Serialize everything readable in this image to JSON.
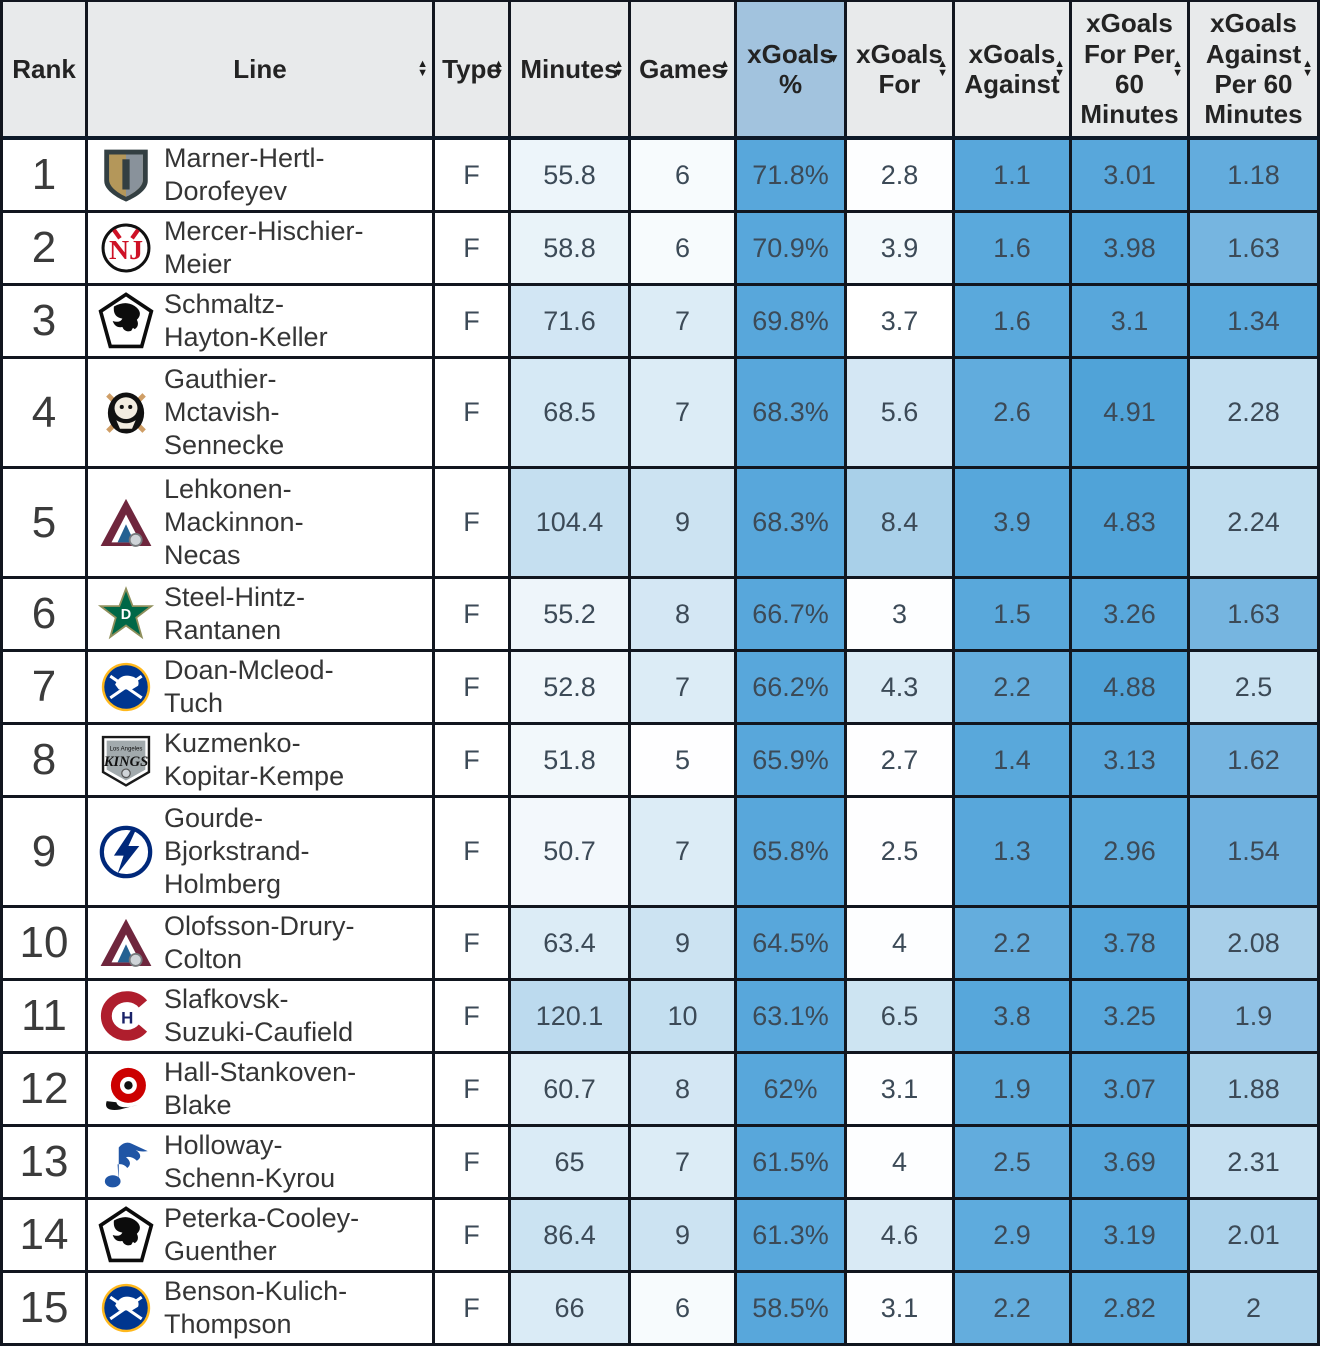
{
  "icons": {
    "sort_up": "▲",
    "sort_down": "▼",
    "sort_desc_active": "▼"
  },
  "palette": {
    "header_bg": "#e8eaeb",
    "header_active_bg": "#a2c3de",
    "border": "#11161f",
    "heat_strong_blue": "#58a7db",
    "heat_light_blue": "#d9eaf5",
    "cell_text": "#3c4a57"
  },
  "teams": {
    "VGK": {
      "name": "Vegas Golden Knights",
      "colors": [
        "#b4975a",
        "#333f42",
        "#89929b"
      ]
    },
    "NJD": {
      "name": "New Jersey Devils",
      "colors": [
        "#ce1126",
        "#000000",
        "#ffffff"
      ]
    },
    "UTA": {
      "name": "Utah Mammoth",
      "colors": [
        "#0c0c0c",
        "#6cace4",
        "#ffffff"
      ]
    },
    "ANA": {
      "name": "Anaheim Ducks",
      "colors": [
        "#111111",
        "#cf9e66",
        "#f2ece0"
      ]
    },
    "COL": {
      "name": "Colorado Avalanche",
      "colors": [
        "#6f263d",
        "#236192",
        "#cfd4d8"
      ]
    },
    "DAL": {
      "name": "Dallas Stars",
      "colors": [
        "#006847",
        "#8f8f5c",
        "#ffffff"
      ]
    },
    "BUF": {
      "name": "Buffalo Sabres",
      "colors": [
        "#00368f",
        "#ffb81c",
        "#ffffff"
      ]
    },
    "LAK": {
      "name": "Los Angeles Kings",
      "colors": [
        "#a2aaad",
        "#111111",
        "#ffffff"
      ]
    },
    "TBL": {
      "name": "Tampa Bay Lightning",
      "colors": [
        "#00287a",
        "#ffffff"
      ]
    },
    "MTL": {
      "name": "Montreal Canadiens",
      "colors": [
        "#af1e2d",
        "#192168",
        "#ffffff"
      ]
    },
    "CAR": {
      "name": "Carolina Hurricanes",
      "colors": [
        "#cc0000",
        "#111111",
        "#ffffff"
      ]
    },
    "STL": {
      "name": "St. Louis Blues",
      "colors": [
        "#2055a5",
        "#fcb514",
        "#ffffff"
      ]
    }
  },
  "table": {
    "columns": [
      {
        "key": "rank",
        "label": "Rank",
        "sortable": false
      },
      {
        "key": "line",
        "label": "Line",
        "sortable": true
      },
      {
        "key": "type",
        "label": "Type",
        "sortable": true
      },
      {
        "key": "minutes",
        "label": "Minutes",
        "sortable": true
      },
      {
        "key": "games",
        "label": "Games",
        "sortable": true
      },
      {
        "key": "xgoals-pct",
        "label": "xGoals %",
        "sortable": true,
        "sorted": "desc"
      },
      {
        "key": "xgoals-for",
        "label": "xGoals For",
        "sortable": true
      },
      {
        "key": "xgoals-against",
        "label": "xGoals Against",
        "sortable": true
      },
      {
        "key": "xgoals-for-per60",
        "label": "xGoals For Per 60 Minutes",
        "sortable": true
      },
      {
        "key": "xgoals-against-per60",
        "label": "xGoals Against Per 60 Minutes",
        "sortable": true
      }
    ],
    "rows": [
      {
        "rank": "1",
        "team": "VGK",
        "line": "Marner-Hertl-Dorofeyev",
        "type": "F",
        "tall": false,
        "stats": [
          {
            "v": "55.8",
            "bg": "#edf5fa"
          },
          {
            "v": "6",
            "bg": "#f7fbfd"
          },
          {
            "v": "71.8%",
            "bg": "#58a7db"
          },
          {
            "v": "2.8",
            "bg": "#fdfeff"
          },
          {
            "v": "1.1",
            "bg": "#58a7db"
          },
          {
            "v": "3.01",
            "bg": "#58a7db"
          },
          {
            "v": "1.18",
            "bg": "#63acdd"
          }
        ]
      },
      {
        "rank": "2",
        "team": "NJD",
        "line": "Mercer-Hischier-Meier",
        "type": "F",
        "tall": false,
        "stats": [
          {
            "v": "58.8",
            "bg": "#e9f3f9"
          },
          {
            "v": "6",
            "bg": "#f7fbfd"
          },
          {
            "v": "70.9%",
            "bg": "#58a7db"
          },
          {
            "v": "3.9",
            "bg": "#f3f9fc"
          },
          {
            "v": "1.6",
            "bg": "#5aa9dc"
          },
          {
            "v": "3.98",
            "bg": "#54a5da"
          },
          {
            "v": "1.63",
            "bg": "#76b5e0"
          }
        ]
      },
      {
        "rank": "3",
        "team": "UTA",
        "line": "Schmaltz-Hayton-Keller",
        "type": "F",
        "tall": false,
        "stats": [
          {
            "v": "71.6",
            "bg": "#d2e6f4"
          },
          {
            "v": "7",
            "bg": "#dcecf6"
          },
          {
            "v": "69.8%",
            "bg": "#58a7db"
          },
          {
            "v": "3.7",
            "bg": "#ffffff"
          },
          {
            "v": "1.6",
            "bg": "#5aa9dc"
          },
          {
            "v": "3.1",
            "bg": "#58a7db"
          },
          {
            "v": "1.34",
            "bg": "#5aa9dc"
          }
        ]
      },
      {
        "rank": "4",
        "team": "ANA",
        "line": "Gauthier-Mctavish-Sennecke",
        "type": "F",
        "tall": true,
        "stats": [
          {
            "v": "68.5",
            "bg": "#d6e9f5"
          },
          {
            "v": "7",
            "bg": "#dcecf6"
          },
          {
            "v": "68.3%",
            "bg": "#58a7db"
          },
          {
            "v": "5.6",
            "bg": "#d4e7f4"
          },
          {
            "v": "2.6",
            "bg": "#61acdd"
          },
          {
            "v": "4.91",
            "bg": "#50a3d8"
          },
          {
            "v": "2.28",
            "bg": "#c2def0"
          }
        ]
      },
      {
        "rank": "5",
        "team": "COL",
        "line": "Lehkonen-Mackinnon-Necas",
        "type": "F",
        "tall": true,
        "stats": [
          {
            "v": "104.4",
            "bg": "#c5dff0"
          },
          {
            "v": "9",
            "bg": "#cce3f2"
          },
          {
            "v": "68.3%",
            "bg": "#58a7db"
          },
          {
            "v": "8.4",
            "bg": "#a9d0e9"
          },
          {
            "v": "3.9",
            "bg": "#57a7db"
          },
          {
            "v": "4.83",
            "bg": "#50a3d8"
          },
          {
            "v": "2.24",
            "bg": "#c0ddef"
          }
        ]
      },
      {
        "rank": "6",
        "team": "DAL",
        "line": "Steel-Hintz-Rantanen",
        "type": "F",
        "tall": false,
        "stats": [
          {
            "v": "55.2",
            "bg": "#eef5fa"
          },
          {
            "v": "8",
            "bg": "#d4e7f4"
          },
          {
            "v": "66.7%",
            "bg": "#58a7db"
          },
          {
            "v": "3",
            "bg": "#fdfeff"
          },
          {
            "v": "1.5",
            "bg": "#59a8db"
          },
          {
            "v": "3.26",
            "bg": "#57a7db"
          },
          {
            "v": "1.63",
            "bg": "#76b5e0"
          }
        ]
      },
      {
        "rank": "7",
        "team": "BUF",
        "line": "Doan-Mcleod-Tuch",
        "type": "F",
        "tall": false,
        "stats": [
          {
            "v": "52.8",
            "bg": "#f1f7fb"
          },
          {
            "v": "7",
            "bg": "#dcecf6"
          },
          {
            "v": "66.2%",
            "bg": "#58a7db"
          },
          {
            "v": "4.3",
            "bg": "#dcecf6"
          },
          {
            "v": "2.2",
            "bg": "#64addd"
          },
          {
            "v": "4.88",
            "bg": "#50a3d8"
          },
          {
            "v": "2.5",
            "bg": "#cbe3f2"
          }
        ]
      },
      {
        "rank": "8",
        "team": "LAK",
        "line": "Kuzmenko-Kopitar-Kempe",
        "type": "F",
        "tall": false,
        "stats": [
          {
            "v": "51.8",
            "bg": "#f2f8fb"
          },
          {
            "v": "5",
            "bg": "#fefeff"
          },
          {
            "v": "65.9%",
            "bg": "#58a7db"
          },
          {
            "v": "2.7",
            "bg": "#fefeff"
          },
          {
            "v": "1.4",
            "bg": "#59a8db"
          },
          {
            "v": "3.13",
            "bg": "#58a7db"
          },
          {
            "v": "1.62",
            "bg": "#75b4e0"
          }
        ]
      },
      {
        "rank": "9",
        "team": "TBL",
        "line": "Gourde-Bjorkstrand-Holmberg",
        "type": "F",
        "tall": true,
        "stats": [
          {
            "v": "50.7",
            "bg": "#f3f8fc"
          },
          {
            "v": "7",
            "bg": "#dcecf6"
          },
          {
            "v": "65.8%",
            "bg": "#58a7db"
          },
          {
            "v": "2.5",
            "bg": "#fefeff"
          },
          {
            "v": "1.3",
            "bg": "#58a7db"
          },
          {
            "v": "2.96",
            "bg": "#5baadc"
          },
          {
            "v": "1.54",
            "bg": "#6fb1df"
          }
        ]
      },
      {
        "rank": "10",
        "team": "COL",
        "line": "Olofsson-Drury-Colton",
        "type": "F",
        "tall": false,
        "stats": [
          {
            "v": "63.4",
            "bg": "#dcecf6"
          },
          {
            "v": "9",
            "bg": "#cce3f2"
          },
          {
            "v": "64.5%",
            "bg": "#58a7db"
          },
          {
            "v": "4",
            "bg": "#fdfeff"
          },
          {
            "v": "2.2",
            "bg": "#64addd"
          },
          {
            "v": "3.78",
            "bg": "#55a6da"
          },
          {
            "v": "2.08",
            "bg": "#a8cfe9"
          }
        ]
      },
      {
        "rank": "11",
        "team": "MTL",
        "line": "Slafkovsk-Suzuki-Caufield",
        "type": "F",
        "tall": false,
        "stats": [
          {
            "v": "120.1",
            "bg": "#bcdaee"
          },
          {
            "v": "10",
            "bg": "#c4dff0"
          },
          {
            "v": "63.1%",
            "bg": "#58a7db"
          },
          {
            "v": "6.5",
            "bg": "#cde4f2"
          },
          {
            "v": "3.8",
            "bg": "#57a7db"
          },
          {
            "v": "3.25",
            "bg": "#57a7db"
          },
          {
            "v": "1.9",
            "bg": "#8fc1e5"
          }
        ]
      },
      {
        "rank": "12",
        "team": "CAR",
        "line": "Hall-Stankoven-Blake",
        "type": "F",
        "tall": false,
        "stats": [
          {
            "v": "60.7",
            "bg": "#e0eef7"
          },
          {
            "v": "8",
            "bg": "#d4e7f4"
          },
          {
            "v": "62%",
            "bg": "#58a7db"
          },
          {
            "v": "3.1",
            "bg": "#fdfeff"
          },
          {
            "v": "1.9",
            "bg": "#5caadc"
          },
          {
            "v": "3.07",
            "bg": "#58a7db"
          },
          {
            "v": "1.88",
            "bg": "#a9d0e9"
          }
        ]
      },
      {
        "rank": "13",
        "team": "STL",
        "line": "Holloway-Schenn-Kyrou",
        "type": "F",
        "tall": false,
        "stats": [
          {
            "v": "65",
            "bg": "#daebf6"
          },
          {
            "v": "7",
            "bg": "#dcecf6"
          },
          {
            "v": "61.5%",
            "bg": "#58a7db"
          },
          {
            "v": "4",
            "bg": "#fdfeff"
          },
          {
            "v": "2.5",
            "bg": "#62acdd"
          },
          {
            "v": "3.69",
            "bg": "#56a6da"
          },
          {
            "v": "2.31",
            "bg": "#c6e0f1"
          }
        ]
      },
      {
        "rank": "14",
        "team": "UTA",
        "line": "Peterka-Cooley-Guenther",
        "type": "F",
        "tall": false,
        "stats": [
          {
            "v": "86.4",
            "bg": "#cbe3f2"
          },
          {
            "v": "9",
            "bg": "#cce3f2"
          },
          {
            "v": "61.3%",
            "bg": "#58a7db"
          },
          {
            "v": "4.6",
            "bg": "#d9eaf5"
          },
          {
            "v": "2.9",
            "bg": "#5eabdd"
          },
          {
            "v": "3.19",
            "bg": "#58a7db"
          },
          {
            "v": "2.01",
            "bg": "#abd1ea"
          }
        ]
      },
      {
        "rank": "15",
        "team": "BUF",
        "line": "Benson-Kulich-Thompson",
        "type": "F",
        "tall": false,
        "stats": [
          {
            "v": "66",
            "bg": "#daebf6"
          },
          {
            "v": "6",
            "bg": "#f7fbfd"
          },
          {
            "v": "58.5%",
            "bg": "#58a7db"
          },
          {
            "v": "3.1",
            "bg": "#fdfeff"
          },
          {
            "v": "2.2",
            "bg": "#64addd"
          },
          {
            "v": "2.82",
            "bg": "#5caadc"
          },
          {
            "v": "2",
            "bg": "#abd1ea"
          }
        ]
      }
    ]
  }
}
